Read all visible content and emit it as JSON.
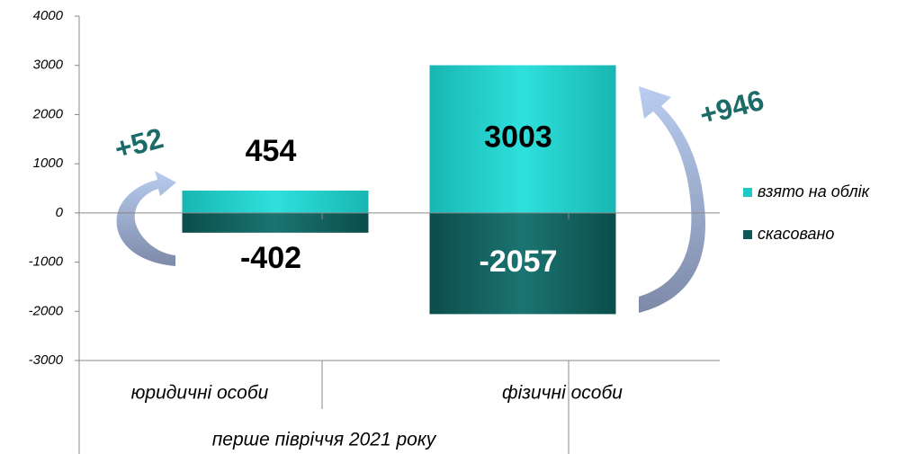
{
  "chart_data": {
    "type": "bar",
    "stacked": true,
    "categories": [
      "юридичні особи",
      "фізичні особи"
    ],
    "group_label": "перше півріччя 2021 року",
    "series": [
      {
        "name": "взято на облік",
        "color": "#1ec8c4",
        "values": [
          454,
          3003
        ]
      },
      {
        "name": "скасовано",
        "color": "#0e5a58",
        "values": [
          -402,
          -2057
        ]
      }
    ],
    "annotations": [
      "+52",
      "+946"
    ],
    "ylim": [
      -3000,
      4000
    ],
    "yticks": [
      -3000,
      -2000,
      -1000,
      0,
      1000,
      2000,
      3000,
      4000
    ],
    "legend": "right"
  }
}
